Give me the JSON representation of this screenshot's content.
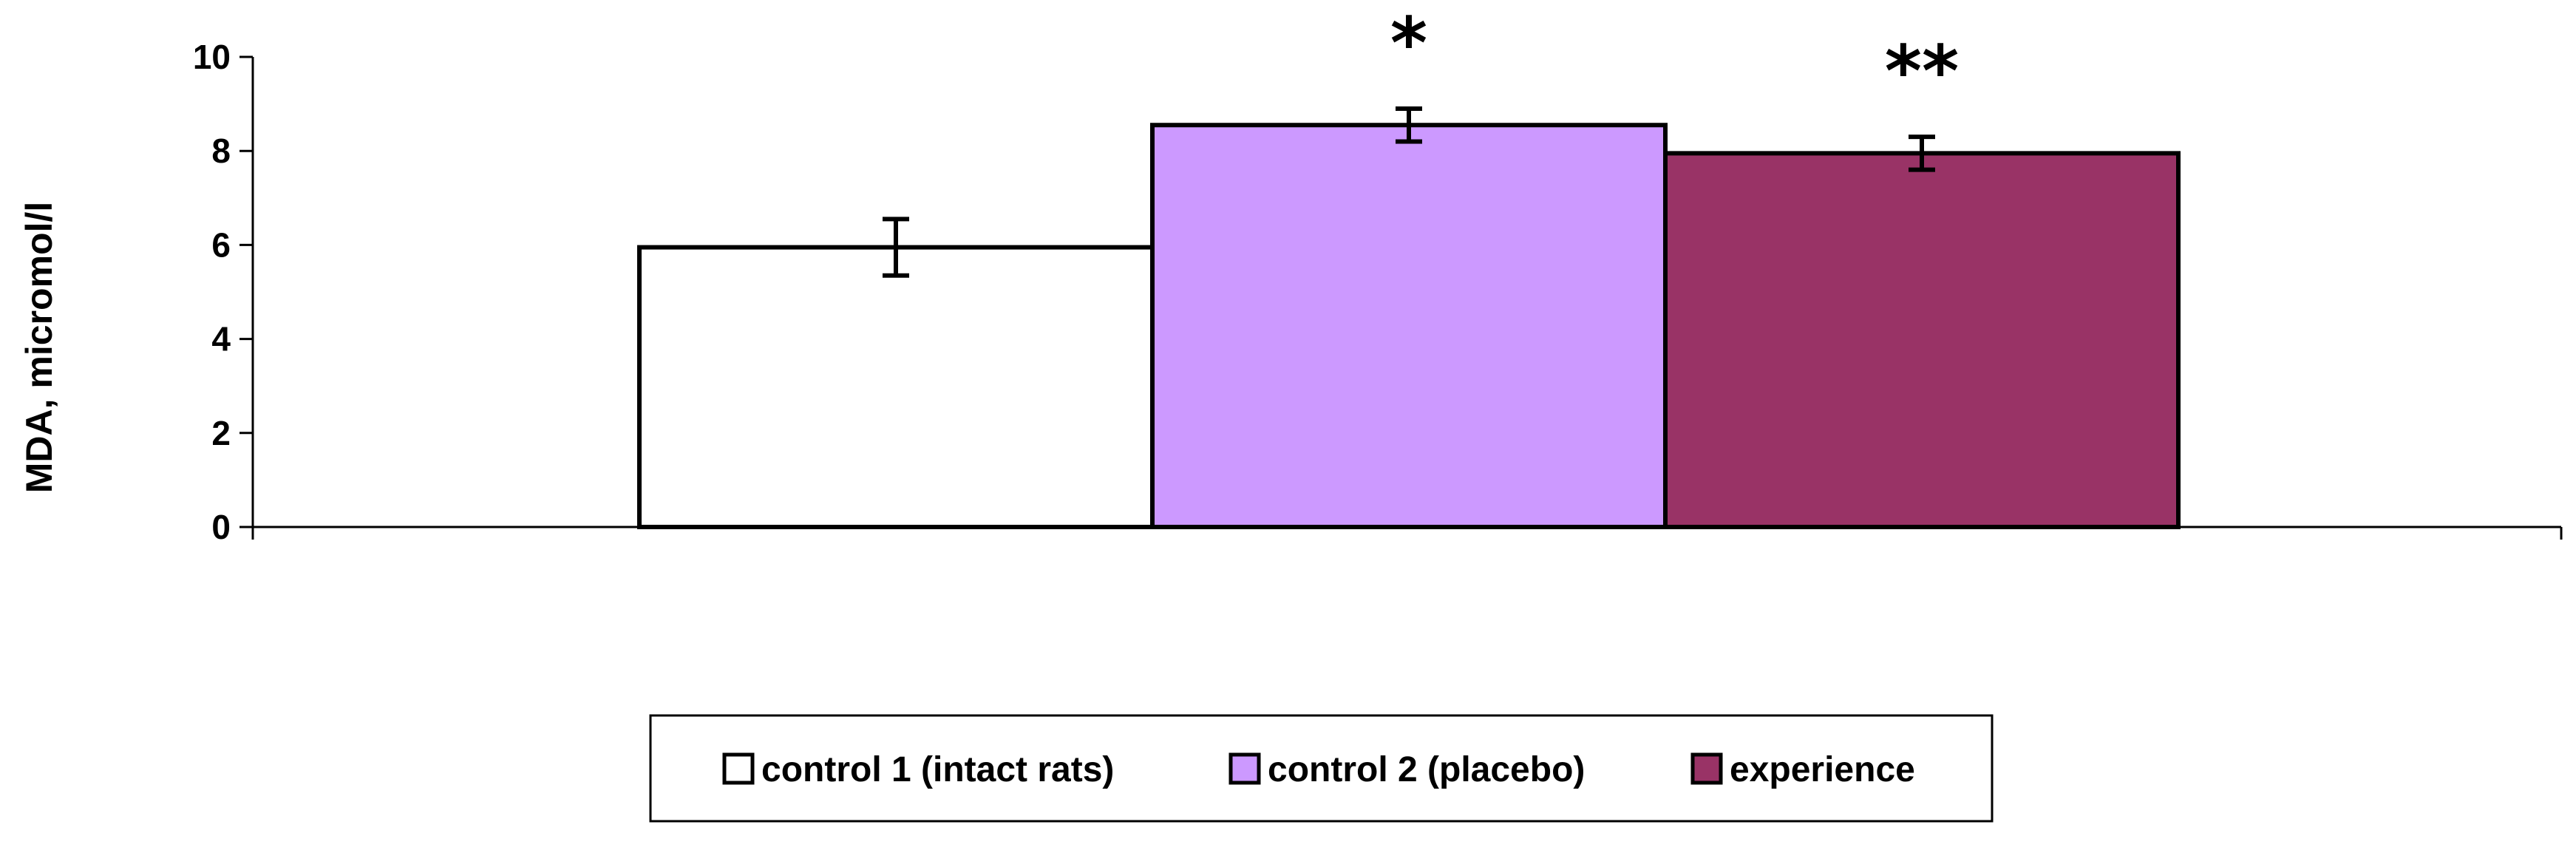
{
  "chart_data": {
    "type": "bar",
    "ylabel": "MDA, micromol/l",
    "ylim": [
      0,
      10
    ],
    "yticks": [
      0,
      2,
      4,
      6,
      8,
      10
    ],
    "grid": false,
    "legend_position": "bottom",
    "series": [
      {
        "name": "control 1 (intact rats)",
        "value": 5.95,
        "error": 0.6,
        "color": "#ffffff",
        "annotation": ""
      },
      {
        "name": "control 2 (placebo)",
        "value": 8.55,
        "error": 0.35,
        "color": "#cc99ff",
        "annotation": "*"
      },
      {
        "name": "experience",
        "value": 7.95,
        "error": 0.35,
        "color": "#993366",
        "annotation": "**"
      }
    ]
  }
}
